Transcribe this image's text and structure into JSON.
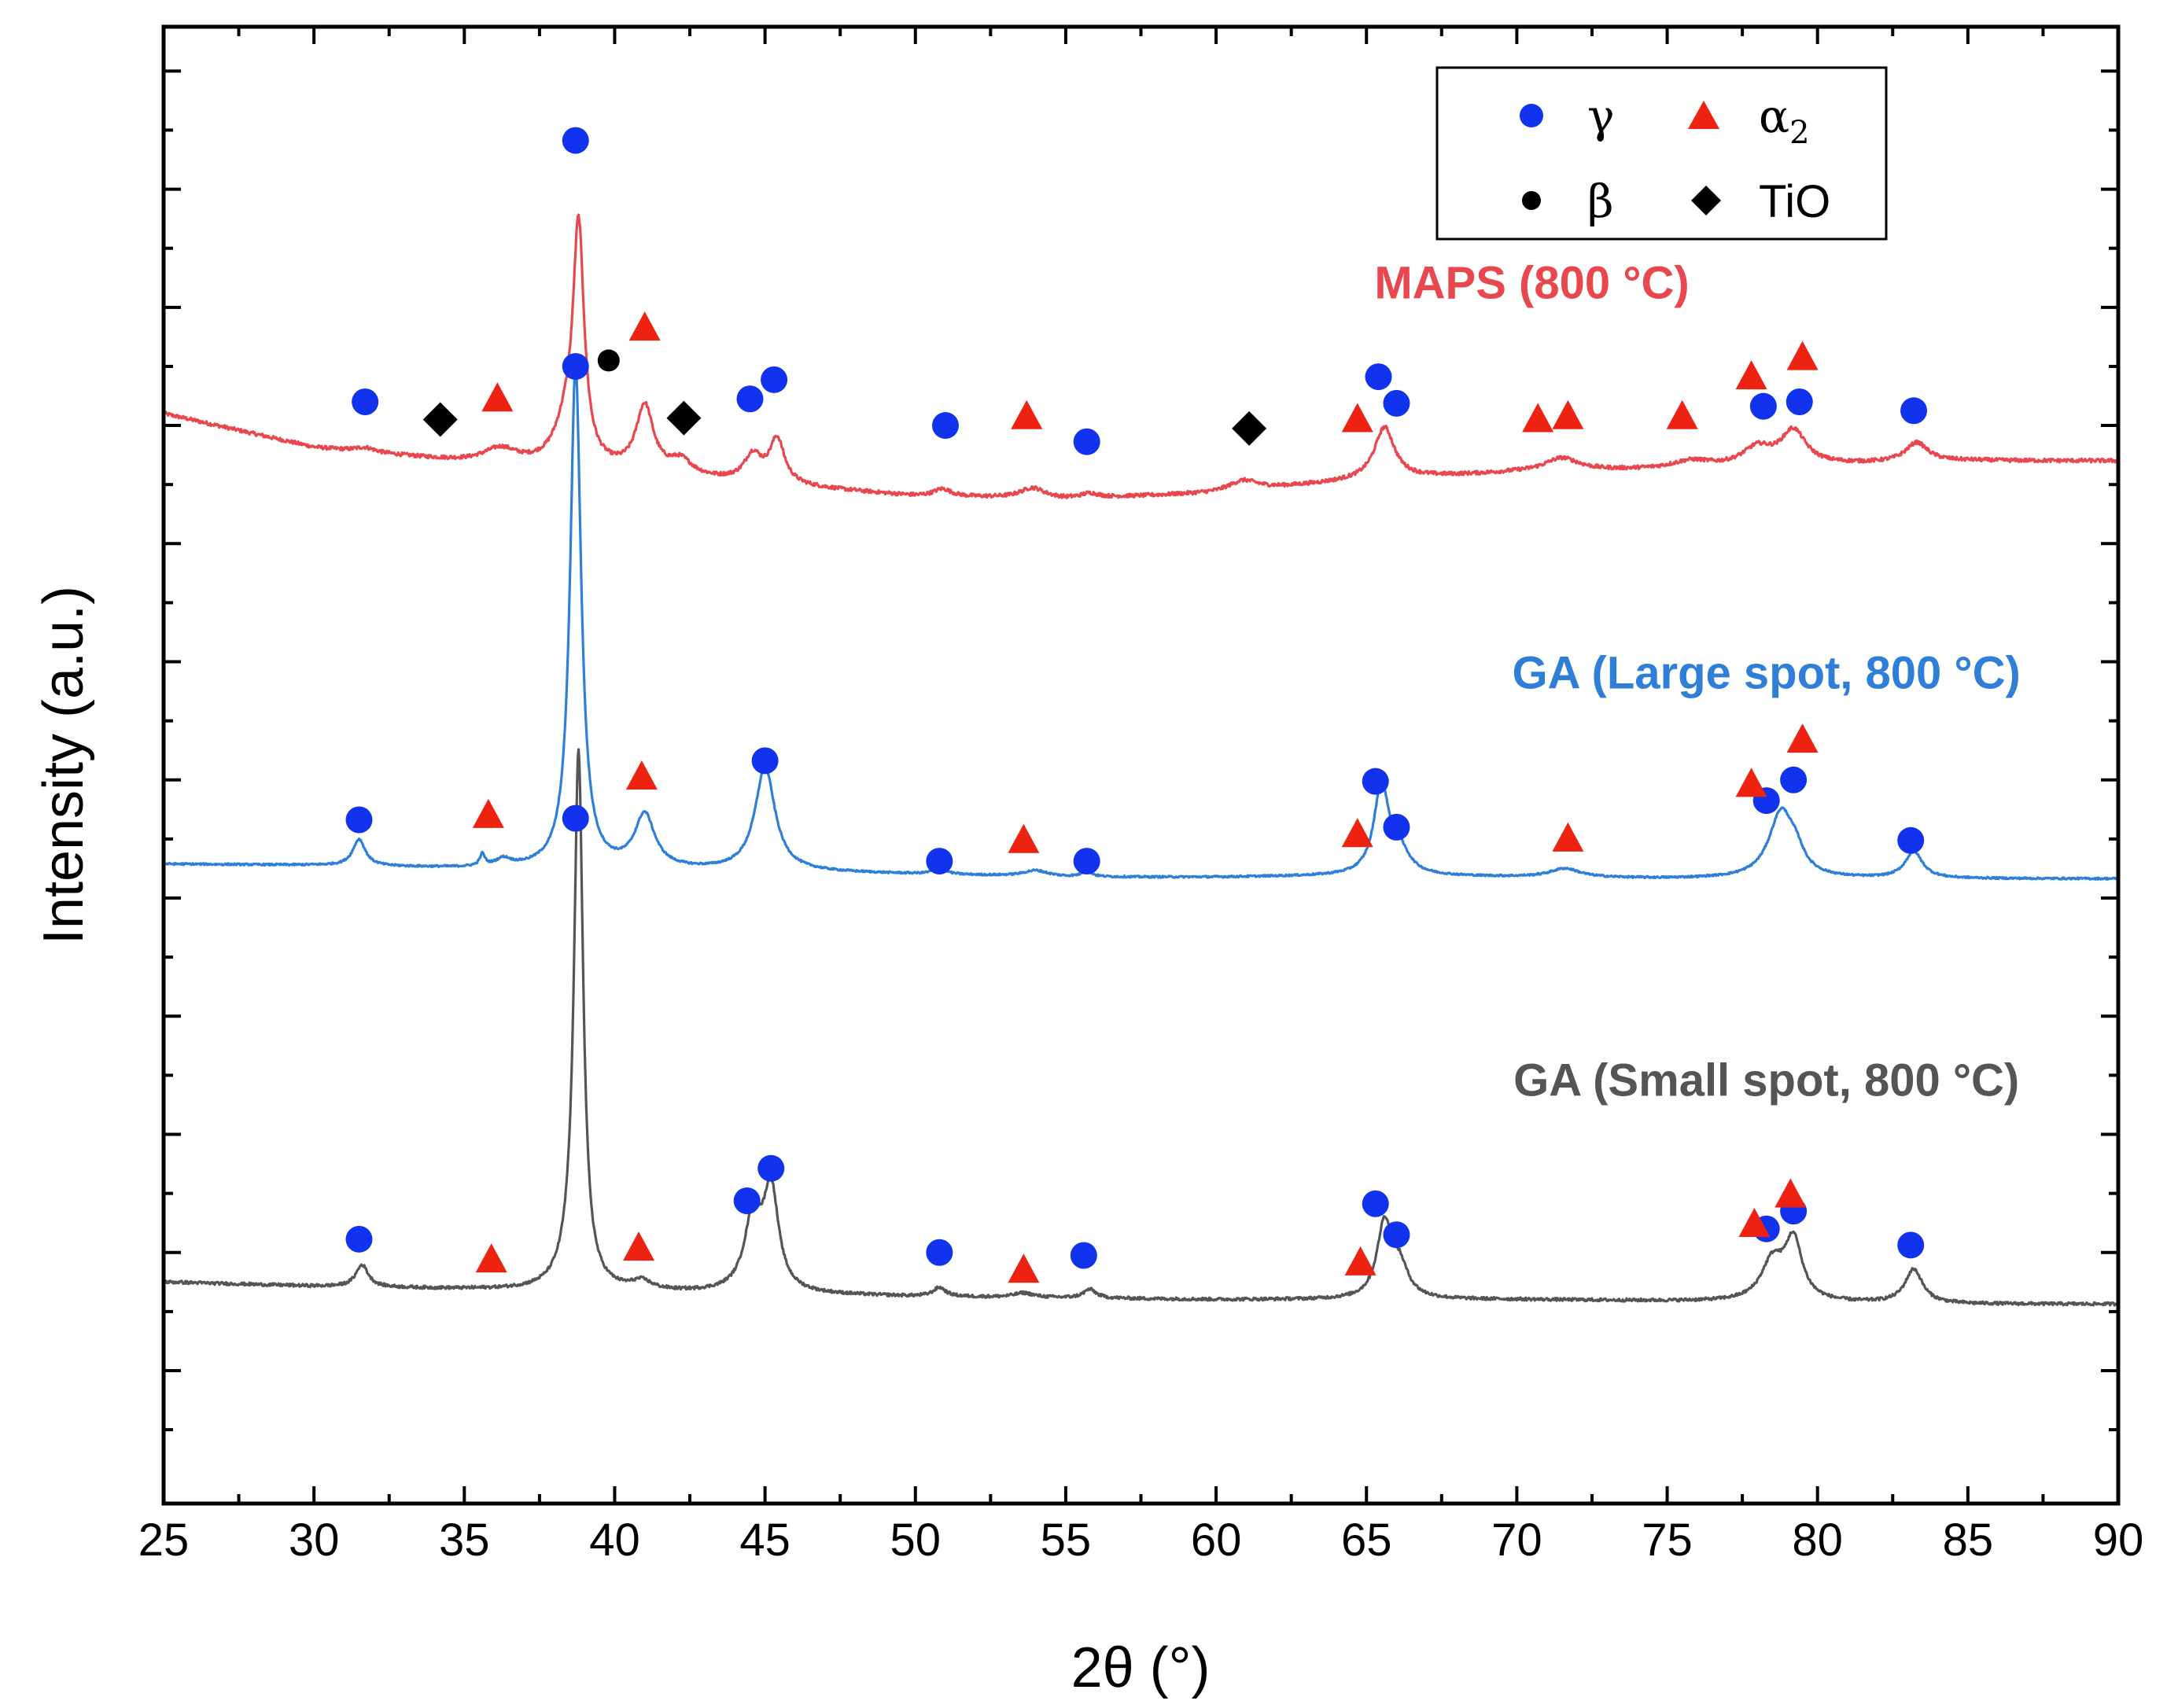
{
  "chart_data": {
    "type": "line",
    "xlabel": "2θ (°)",
    "ylabel": "Intensity (a.u.)",
    "xlim": [
      25,
      90
    ],
    "ylim": [
      0,
      100
    ],
    "xticks": [
      25,
      30,
      35,
      40,
      45,
      50,
      55,
      60,
      65,
      70,
      75,
      80,
      85,
      90
    ],
    "colors": {
      "gamma": "#1133ee",
      "alpha2": "#ee2211",
      "beta": "#000000",
      "tio": "#000000",
      "maps": "#e8474d",
      "ga_large": "#2f7fd9",
      "ga_small": "#555555"
    },
    "legend": {
      "placement": "top-right",
      "entries": [
        {
          "key": "gamma",
          "label": "γ",
          "marker": "circle"
        },
        {
          "key": "alpha2",
          "label": "α",
          "sub": "2",
          "marker": "triangle"
        },
        {
          "key": "beta",
          "label": "β",
          "marker": "dot"
        },
        {
          "key": "tio",
          "label": "TiO",
          "marker": "diamond"
        }
      ]
    },
    "series": [
      {
        "name": "MAPS (800 °C)",
        "color_key": "maps",
        "label_x": 70.5,
        "label_y": 81.6,
        "baseline": [
          [
            25,
            73.8
          ],
          [
            30,
            71.5
          ],
          [
            35,
            70.5
          ],
          [
            40,
            69.8
          ],
          [
            45,
            69.0
          ],
          [
            50,
            68.2
          ],
          [
            55,
            68.0
          ],
          [
            60,
            68.4
          ],
          [
            65,
            69.3
          ],
          [
            70,
            69.8
          ],
          [
            75,
            70.0
          ],
          [
            80,
            70.3
          ],
          [
            85,
            70.6
          ],
          [
            90,
            70.6
          ]
        ],
        "peaks": [
          [
            31.7,
            0.4,
            0.3
          ],
          [
            36.2,
            0.7,
            1.0
          ],
          [
            38.8,
            0.22,
            15.5
          ],
          [
            38.4,
            0.5,
            2.5
          ],
          [
            41.0,
            0.35,
            4.5
          ],
          [
            42.2,
            0.45,
            1.0
          ],
          [
            44.6,
            0.35,
            1.8
          ],
          [
            45.4,
            0.3,
            3.0
          ],
          [
            50.9,
            0.35,
            0.5
          ],
          [
            53.9,
            0.5,
            0.7
          ],
          [
            55.8,
            0.35,
            0.3
          ],
          [
            60.9,
            0.6,
            0.7
          ],
          [
            65.6,
            0.4,
            3.5
          ],
          [
            71.5,
            0.7,
            0.9
          ],
          [
            75.8,
            0.8,
            0.5
          ],
          [
            78.0,
            0.6,
            1.2
          ],
          [
            79.2,
            0.5,
            2.3
          ],
          [
            83.3,
            0.45,
            1.3
          ]
        ],
        "noise": 0.25
      },
      {
        "name": "GA (Large spot, 800 °C)",
        "color_key": "ga_large",
        "label_x": 78.3,
        "label_y": 55.2,
        "baseline": [
          [
            25,
            43.3
          ],
          [
            30,
            43.2
          ],
          [
            35,
            43.0
          ],
          [
            40,
            42.9
          ],
          [
            45,
            42.8
          ],
          [
            50,
            42.6
          ],
          [
            55,
            42.4
          ],
          [
            60,
            42.4
          ],
          [
            65,
            42.5
          ],
          [
            70,
            42.4
          ],
          [
            75,
            42.3
          ],
          [
            80,
            42.3
          ],
          [
            85,
            42.3
          ],
          [
            90,
            42.3
          ]
        ],
        "peaks": [
          [
            31.5,
            0.25,
            1.8
          ],
          [
            35.6,
            0.1,
            0.8
          ],
          [
            36.3,
            0.3,
            0.5
          ],
          [
            38.7,
            0.22,
            34.0
          ],
          [
            41.0,
            0.4,
            3.6
          ],
          [
            45.0,
            0.4,
            7.0
          ],
          [
            50.8,
            0.2,
            0.6
          ],
          [
            54.0,
            0.5,
            0.4
          ],
          [
            55.7,
            0.2,
            0.4
          ],
          [
            65.5,
            0.3,
            6.0
          ],
          [
            66.1,
            0.4,
            1.5
          ],
          [
            71.6,
            0.6,
            0.6
          ],
          [
            78.8,
            0.5,
            4.5
          ],
          [
            79.3,
            0.3,
            1.0
          ],
          [
            83.2,
            0.35,
            1.8
          ]
        ],
        "noise": 0.12
      },
      {
        "name": "GA (Small spot, 800 °C)",
        "color_key": "ga_small",
        "label_x": 78.3,
        "label_y": 27.6,
        "baseline": [
          [
            25,
            15.0
          ],
          [
            30,
            14.7
          ],
          [
            35,
            14.5
          ],
          [
            40,
            14.3
          ],
          [
            45,
            14.2
          ],
          [
            50,
            14.0
          ],
          [
            55,
            13.9
          ],
          [
            60,
            13.8
          ],
          [
            65,
            13.8
          ],
          [
            70,
            13.8
          ],
          [
            75,
            13.7
          ],
          [
            80,
            13.6
          ],
          [
            85,
            13.5
          ],
          [
            90,
            13.5
          ]
        ],
        "peaks": [
          [
            31.6,
            0.25,
            1.5
          ],
          [
            38.8,
            0.18,
            35.5
          ],
          [
            38.55,
            0.45,
            1.5
          ],
          [
            40.9,
            0.4,
            0.6
          ],
          [
            44.6,
            0.35,
            4.8
          ],
          [
            45.2,
            0.3,
            6.7
          ],
          [
            50.8,
            0.25,
            0.6
          ],
          [
            53.6,
            0.4,
            0.3
          ],
          [
            55.8,
            0.25,
            0.6
          ],
          [
            65.6,
            0.3,
            5.0
          ],
          [
            66.1,
            0.35,
            2.0
          ],
          [
            78.5,
            0.45,
            2.6
          ],
          [
            79.2,
            0.35,
            4.0
          ],
          [
            83.2,
            0.35,
            2.3
          ]
        ],
        "noise": 0.2
      }
    ],
    "markers": [
      {
        "type": "gamma",
        "points": [
          [
            31.7,
            74.6
          ],
          [
            38.7,
            92.3
          ],
          [
            38.7,
            77.0
          ],
          [
            44.5,
            74.8
          ],
          [
            45.3,
            76.1
          ],
          [
            51.0,
            73.0
          ],
          [
            55.7,
            71.9
          ],
          [
            65.4,
            76.3
          ],
          [
            66.0,
            74.5
          ],
          [
            78.2,
            74.3
          ],
          [
            79.4,
            74.6
          ],
          [
            83.2,
            74.0
          ],
          [
            31.5,
            46.3
          ],
          [
            38.7,
            46.4
          ],
          [
            45.0,
            50.3
          ],
          [
            50.8,
            43.5
          ],
          [
            55.7,
            43.5
          ],
          [
            65.3,
            48.9
          ],
          [
            66.0,
            45.8
          ],
          [
            78.3,
            47.6
          ],
          [
            79.2,
            49.0
          ],
          [
            83.1,
            44.9
          ],
          [
            31.5,
            17.9
          ],
          [
            44.4,
            20.5
          ],
          [
            45.2,
            22.7
          ],
          [
            50.8,
            17.0
          ],
          [
            55.6,
            16.8
          ],
          [
            65.3,
            20.3
          ],
          [
            66.0,
            18.2
          ],
          [
            78.3,
            18.6
          ],
          [
            79.2,
            19.8
          ],
          [
            83.1,
            17.5
          ]
        ]
      },
      {
        "type": "alpha2",
        "points": [
          [
            36.1,
            74.8
          ],
          [
            41.0,
            79.6
          ],
          [
            53.7,
            73.6
          ],
          [
            64.7,
            73.4
          ],
          [
            70.7,
            73.4
          ],
          [
            71.7,
            73.6
          ],
          [
            75.5,
            73.6
          ],
          [
            77.8,
            76.3
          ],
          [
            79.5,
            77.6
          ],
          [
            35.8,
            46.6
          ],
          [
            40.9,
            49.2
          ],
          [
            53.6,
            44.9
          ],
          [
            64.7,
            45.3
          ],
          [
            71.7,
            45.0
          ],
          [
            77.8,
            48.7
          ],
          [
            79.5,
            51.7
          ],
          [
            35.9,
            16.5
          ],
          [
            40.8,
            17.3
          ],
          [
            53.6,
            15.8
          ],
          [
            64.8,
            16.3
          ],
          [
            77.9,
            18.9
          ],
          [
            79.1,
            20.9
          ]
        ]
      },
      {
        "type": "beta",
        "points": [
          [
            39.8,
            77.4
          ]
        ]
      },
      {
        "type": "tio",
        "points": [
          [
            34.2,
            73.4
          ],
          [
            42.3,
            73.5
          ],
          [
            61.1,
            72.8
          ]
        ]
      }
    ]
  }
}
